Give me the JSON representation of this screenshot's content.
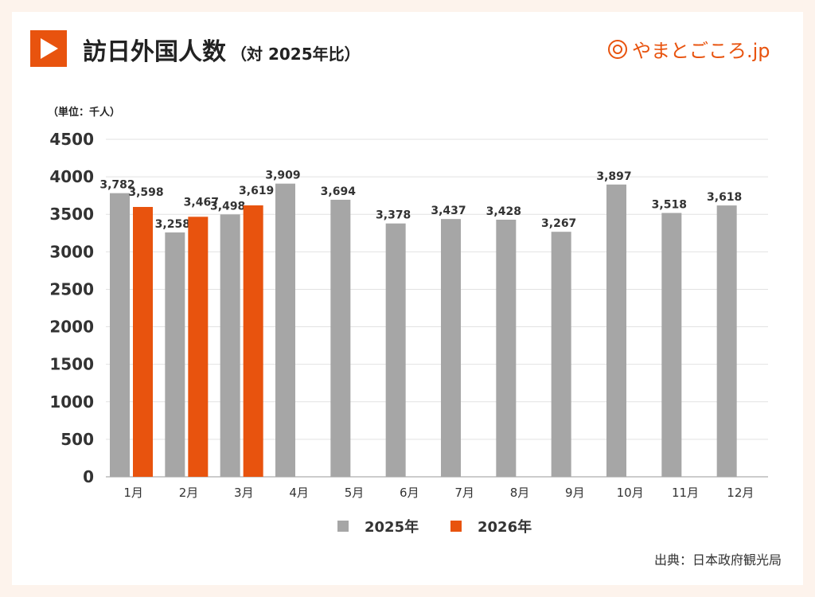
{
  "header": {
    "title": "訪日外国人数",
    "subtitle": "（対 2025年比）",
    "logo_text": "やまとごころ.jp"
  },
  "unit_label": "（単位：千人）",
  "source": "出典：日本政府観光局",
  "chart_data": {
    "type": "bar",
    "title": "訪日外国人数（対 2025年比）",
    "categories": [
      "1月",
      "2月",
      "3月",
      "4月",
      "5月",
      "6月",
      "7月",
      "8月",
      "9月",
      "10月",
      "11月",
      "12月"
    ],
    "series": [
      {
        "name": "2025年",
        "color": "#a6a6a6",
        "values": [
          3782,
          3258,
          3498,
          3909,
          3694,
          3378,
          3437,
          3428,
          3267,
          3897,
          3518,
          3618
        ],
        "labels": [
          "3,782",
          "3,258",
          "3,498",
          "3,909",
          "3,694",
          "3,378",
          "3,437",
          "3,428",
          "3,267",
          "3,897",
          "3,518",
          "3,618"
        ]
      },
      {
        "name": "2026年",
        "color": "#e8530e",
        "values": [
          3598,
          3467,
          3619,
          null,
          null,
          null,
          null,
          null,
          null,
          null,
          null,
          null
        ],
        "labels": [
          "3,598",
          "3,467",
          "3,619",
          null,
          null,
          null,
          null,
          null,
          null,
          null,
          null,
          null
        ]
      }
    ],
    "ylim": [
      0,
      4500
    ],
    "yticks": [
      0,
      500,
      1000,
      1500,
      2000,
      2500,
      3000,
      3500,
      4000,
      4500
    ],
    "ylabel": "（単位：千人）",
    "grid": true,
    "legend_position": "bottom"
  }
}
